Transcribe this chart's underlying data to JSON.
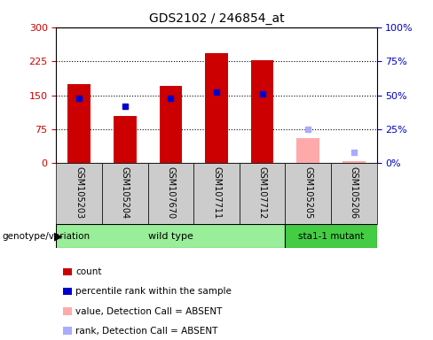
{
  "title": "GDS2102 / 246854_at",
  "samples": [
    "GSM105203",
    "GSM105204",
    "GSM107670",
    "GSM107711",
    "GSM107712",
    "GSM105205",
    "GSM105206"
  ],
  "counts": [
    175,
    105,
    170,
    243,
    228,
    55,
    5
  ],
  "percentile_ranks": [
    48,
    42,
    48,
    52,
    51,
    null,
    null
  ],
  "absent_values": [
    null,
    null,
    null,
    null,
    null,
    55,
    5
  ],
  "absent_ranks": [
    null,
    null,
    null,
    null,
    null,
    25,
    8
  ],
  "detection_absent": [
    false,
    false,
    false,
    false,
    false,
    true,
    true
  ],
  "ylim_left": [
    0,
    300
  ],
  "ylim_right": [
    0,
    100
  ],
  "yticks_left": [
    0,
    75,
    150,
    225,
    300
  ],
  "ytick_labels_left": [
    "0",
    "75",
    "150",
    "225",
    "300"
  ],
  "yticks_right": [
    0,
    25,
    50,
    75,
    100
  ],
  "ytick_labels_right": [
    "0%",
    "25%",
    "50%",
    "75%",
    "100%"
  ],
  "bar_width": 0.5,
  "count_color": "#cc0000",
  "rank_color": "#0000cc",
  "absent_value_color": "#ffaaaa",
  "absent_rank_color": "#aaaaff",
  "wild_type_color": "#99ee99",
  "mutant_color": "#44cc44",
  "bg_color": "#cccccc",
  "legend_items": [
    {
      "label": "count",
      "color": "#cc0000"
    },
    {
      "label": "percentile rank within the sample",
      "color": "#0000cc"
    },
    {
      "label": "value, Detection Call = ABSENT",
      "color": "#ffaaaa"
    },
    {
      "label": "rank, Detection Call = ABSENT",
      "color": "#aaaaff"
    }
  ]
}
